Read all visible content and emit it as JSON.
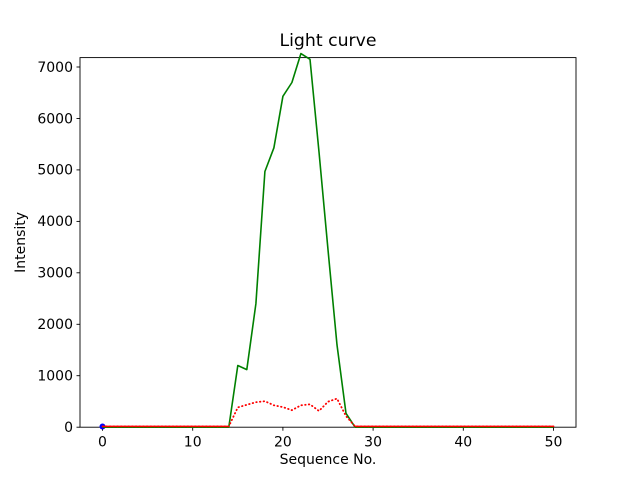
{
  "chart_data": {
    "type": "line",
    "title": "Light curve",
    "xlabel": "Sequence No.",
    "ylabel": "Intensity",
    "xlim": [
      -2.5,
      52.5
    ],
    "ylim": [
      0,
      7183
    ],
    "x_ticks": [
      0,
      10,
      20,
      30,
      40,
      50
    ],
    "y_ticks": [
      0,
      1000,
      2000,
      3000,
      4000,
      5000,
      6000,
      7000
    ],
    "grid": false,
    "legend": null,
    "series": [
      {
        "name": "blue-point-series",
        "color": "#0000ff",
        "style": "marker",
        "x": [
          0
        ],
        "y": [
          0
        ]
      },
      {
        "name": "green-solid-series",
        "color": "#008000",
        "style": "solid",
        "x": [
          0,
          1,
          2,
          3,
          4,
          5,
          6,
          7,
          8,
          9,
          10,
          11,
          12,
          13,
          14,
          15,
          16,
          17,
          18,
          19,
          20,
          21,
          22,
          23,
          24,
          25,
          26,
          27,
          28,
          29,
          30,
          31,
          32,
          33,
          34,
          35,
          36,
          37,
          38,
          39,
          40,
          41,
          42,
          43,
          44,
          45,
          46,
          47,
          48,
          49,
          50
        ],
        "y": [
          0,
          0,
          0,
          0,
          0,
          0,
          0,
          0,
          0,
          0,
          0,
          0,
          0,
          0,
          0,
          1200,
          1120,
          2400,
          4970,
          5430,
          6430,
          6700,
          7260,
          7150,
          5350,
          3450,
          1600,
          270,
          0,
          0,
          0,
          0,
          0,
          0,
          0,
          0,
          0,
          0,
          0,
          0,
          0,
          0,
          0,
          0,
          0,
          0,
          0,
          0,
          0,
          0,
          0
        ]
      },
      {
        "name": "red-dotted-series",
        "color": "#ff0000",
        "style": "dotted",
        "x": [
          0,
          1,
          2,
          3,
          4,
          5,
          6,
          7,
          8,
          9,
          10,
          11,
          12,
          13,
          14,
          15,
          16,
          17,
          18,
          19,
          20,
          21,
          22,
          23,
          24,
          25,
          26,
          27,
          28,
          29,
          30,
          31,
          32,
          33,
          34,
          35,
          36,
          37,
          38,
          39,
          40,
          41,
          42,
          43,
          44,
          45,
          46,
          47,
          48,
          49,
          50
        ],
        "y": [
          0,
          0,
          0,
          0,
          0,
          0,
          0,
          0,
          0,
          0,
          0,
          0,
          0,
          0,
          0,
          370,
          420,
          470,
          490,
          410,
          375,
          315,
          410,
          430,
          300,
          480,
          540,
          200,
          0,
          0,
          0,
          0,
          0,
          0,
          0,
          0,
          0,
          0,
          0,
          0,
          0,
          0,
          0,
          0,
          0,
          0,
          0,
          0,
          0,
          0,
          0
        ]
      }
    ]
  }
}
